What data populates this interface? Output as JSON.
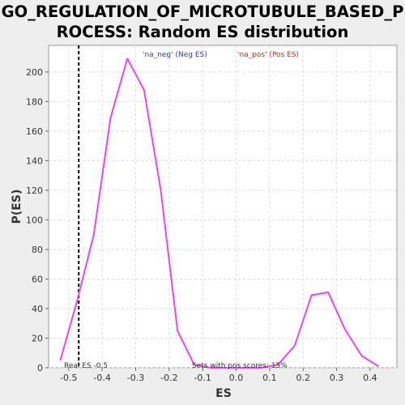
{
  "header": {
    "title_line1": "GO_REGULATION_OF_MICROTUBULE_BASED_P",
    "title_line2": "ROCESS: Random ES distribution"
  },
  "chart_data": {
    "type": "line",
    "title": "GO_REGULATION_OF_MICROTUBULE_BASED_PROCESS: Random ES distribution",
    "xlabel": "ES",
    "ylabel": "P(ES)",
    "xlim": [
      -0.56,
      0.48
    ],
    "ylim": [
      0,
      218
    ],
    "xticks": [
      -0.5,
      -0.4,
      -0.3,
      -0.2,
      -0.1,
      0.0,
      0.1,
      0.2,
      0.3,
      0.4
    ],
    "xtick_labels": [
      "-0.5",
      "-0.4",
      "-0.3",
      "-0.2",
      "-0.1",
      "0.0",
      "0.1",
      "0.2",
      "0.3",
      "0.4"
    ],
    "yticks": [
      0,
      20,
      40,
      60,
      80,
      100,
      120,
      140,
      160,
      180,
      200
    ],
    "grid": true,
    "legend_position": "top",
    "legend": [
      {
        "label": "'na_neg' (Neg ES)",
        "color": "#3333dd"
      },
      {
        "label": "'na_pos' (Pos ES)",
        "color": "#dd2222"
      }
    ],
    "series": [
      {
        "color": "#ee44ee",
        "x": [
          -0.525,
          -0.475,
          -0.425,
          -0.375,
          -0.325,
          -0.275,
          -0.225,
          -0.175,
          -0.125,
          -0.075,
          -0.025,
          0.025,
          0.075,
          0.125,
          0.175,
          0.225,
          0.275,
          0.325,
          0.375,
          0.425
        ],
        "y": [
          5,
          45,
          90,
          169,
          209,
          188,
          120,
          25,
          2,
          0,
          0,
          0,
          0,
          2,
          15,
          49,
          51,
          26,
          8,
          1
        ]
      }
    ],
    "real_es": {
      "x": -0.47,
      "label": "Real ES -0.5"
    },
    "annotation": "Sets with pos scores: 15%"
  }
}
